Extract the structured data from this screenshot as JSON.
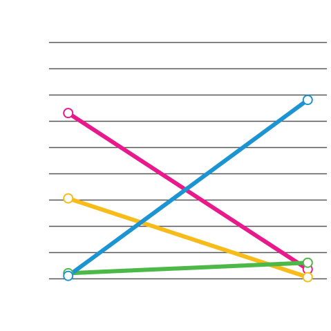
{
  "chart_data": {
    "type": "line",
    "title": "",
    "xlabel": "",
    "ylabel": "",
    "x": [
      0,
      1
    ],
    "xlim": [
      -0.08,
      1.08
    ],
    "ylim": [
      0,
      10
    ],
    "grid": true,
    "grid_lines": [
      0.5,
      1.5,
      2.5,
      3.5,
      4.5,
      5.5,
      6.5,
      7.5,
      8.5,
      9.5
    ],
    "grid_color": "#555555",
    "series": [
      {
        "values": [
          6.8,
          0.85
        ],
        "color": "#e8198b"
      },
      {
        "values": [
          3.55,
          0.55
        ],
        "color": "#f7bc1a"
      },
      {
        "values": [
          0.7,
          1.1
        ],
        "color": "#4cb848"
      },
      {
        "values": [
          0.6,
          7.3
        ],
        "color": "#1d94d2"
      }
    ]
  }
}
